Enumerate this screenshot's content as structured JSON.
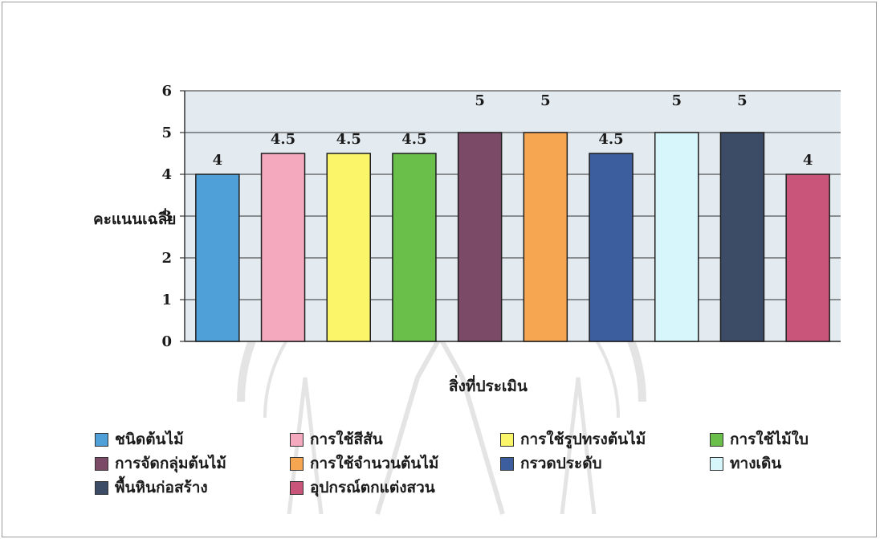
{
  "chart_data": {
    "type": "bar",
    "xlabel": "สิ่งที่ประเมิน",
    "ylabel": "คะแนนเฉลี่ย",
    "ylim": [
      0,
      6
    ],
    "yticks": [
      "0",
      "1",
      "2",
      "3",
      "4",
      "5",
      "6"
    ],
    "grid": true,
    "legend_position": "bottom",
    "categories": [
      "ชนิดต้นไม้",
      "การใช้สีสัน",
      "การใช้รูปทรงต้นไม้",
      "การใช้ไม้ใบ",
      "การจัดกลุ่มต้นไม้",
      "การใช้จำนวนต้นไม้",
      "กรวดประดับ",
      "ทางเดิน",
      "พื้นหินก่อสร้าง",
      "อุปกรณ์ตกแต่งสวน"
    ],
    "values": [
      4,
      4.5,
      4.5,
      4.5,
      5,
      5,
      4.5,
      5,
      5,
      4
    ],
    "value_labels": [
      "4",
      "4.5",
      "4.5",
      "4.5",
      "5",
      "5",
      "4.5",
      "5",
      "5",
      "4"
    ],
    "colors": [
      "#4f9fd8",
      "#f4a9be",
      "#fbf56a",
      "#6abf4b",
      "#7a4a66",
      "#f6a550",
      "#3c5e9e",
      "#d6f6fb",
      "#3d4c66",
      "#c9557a"
    ],
    "plot_background": "#e3ebf1"
  }
}
